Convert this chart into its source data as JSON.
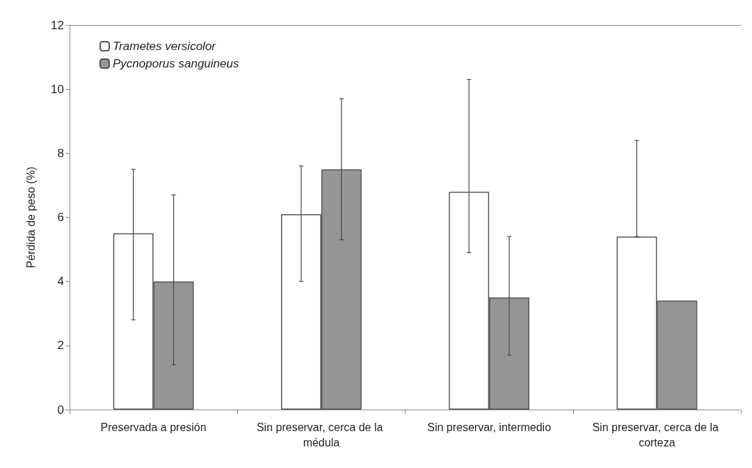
{
  "chart_data": {
    "type": "bar",
    "ylabel": "Pérdida de peso (%)",
    "categories": [
      "Preservada a presión",
      "Sin preservar, cerca de la médula",
      "Sin preservar, intermedio",
      "Sin preservar, cerca de la corteza"
    ],
    "series": [
      {
        "name": "Trametes versicolor",
        "color": "#ffffff",
        "values": [
          5.5,
          6.1,
          6.8,
          5.4
        ],
        "errors": [
          [
            2.8,
            7.5
          ],
          [
            4.0,
            7.6
          ],
          [
            4.9,
            10.3
          ],
          [
            5.4,
            8.4
          ]
        ]
      },
      {
        "name": "Pycnoporus sanguineus",
        "color": "#969696",
        "values": [
          4.0,
          7.5,
          3.5,
          3.4
        ],
        "errors": [
          [
            1.4,
            6.7
          ],
          [
            5.3,
            9.7
          ],
          [
            1.7,
            5.4
          ],
          null
        ]
      }
    ],
    "ylim": [
      0,
      12
    ],
    "yticks": [
      0,
      2,
      4,
      6,
      8,
      10,
      12
    ],
    "grid": false,
    "legend": "top left"
  }
}
